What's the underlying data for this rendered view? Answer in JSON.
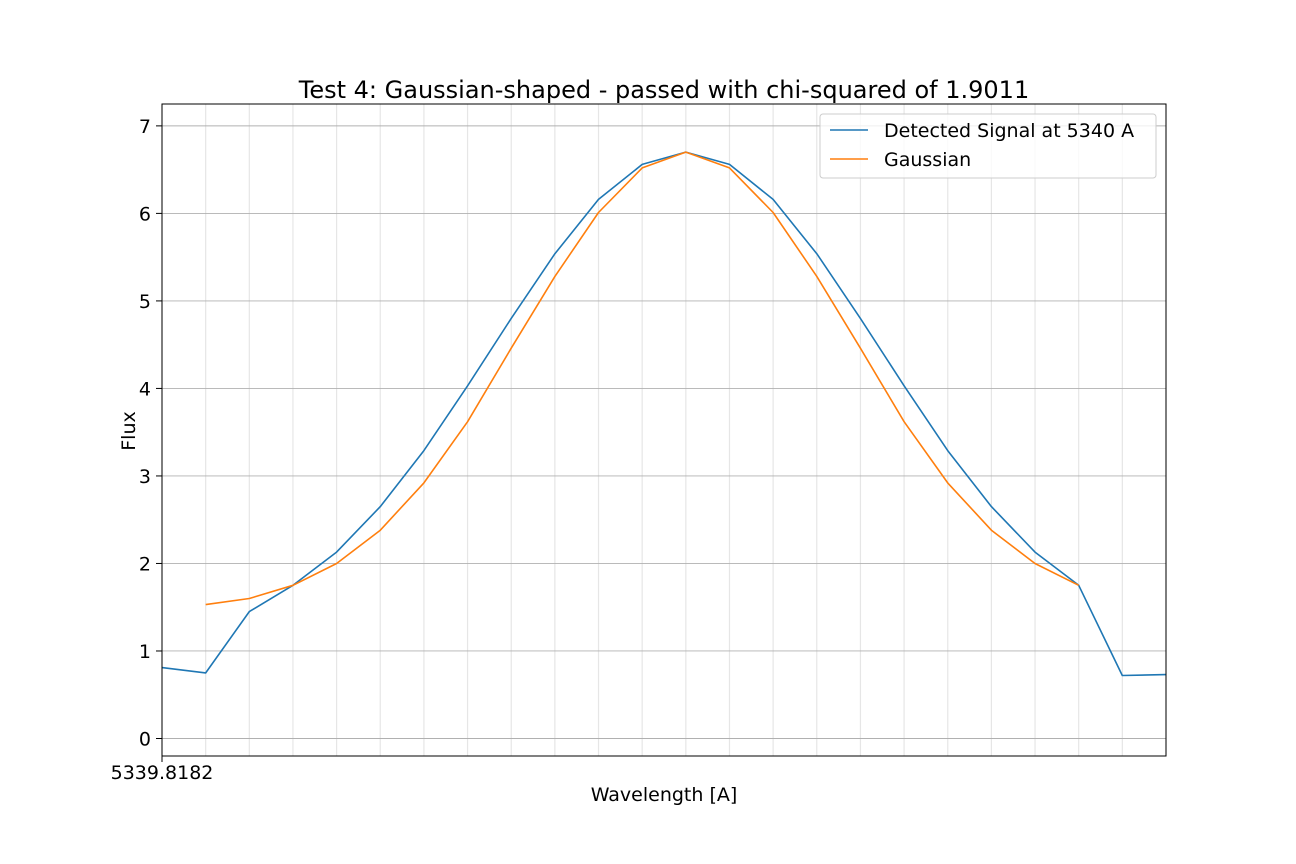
{
  "chart_data": {
    "type": "line",
    "title": "Test 4: Gaussian-shaped - passed with chi-squared of 1.9011",
    "xlabel": "Wavelength [A]",
    "ylabel": "Flux",
    "x_tick_label": "5339.8182",
    "y_ticks": [
      0,
      1,
      2,
      3,
      4,
      5,
      6,
      7
    ],
    "ylim": [
      -0.2,
      7.25
    ],
    "x_index_range": [
      0,
      23
    ],
    "grid": true,
    "legend_position": "top-right",
    "series": [
      {
        "name": "Detected Signal at 5340 A",
        "color": "#1f77b4",
        "x_index": [
          0,
          1,
          2,
          3,
          4,
          5,
          6,
          7,
          8,
          9,
          10,
          11,
          12,
          13,
          14,
          15,
          16,
          17,
          18,
          19,
          20,
          21,
          22,
          23
        ],
        "values": [
          0.81,
          0.75,
          1.45,
          1.75,
          2.13,
          2.65,
          3.29,
          4.03,
          4.8,
          5.54,
          6.16,
          6.56,
          6.7,
          6.56,
          6.16,
          5.54,
          4.8,
          4.03,
          3.29,
          2.65,
          2.13,
          1.75,
          0.72,
          0.73
        ]
      },
      {
        "name": "Gaussian",
        "color": "#ff7f0e",
        "x_index": [
          1,
          2,
          3,
          4,
          5,
          6,
          7,
          8,
          9,
          10,
          11,
          12,
          13,
          14,
          15,
          16,
          17,
          18,
          19,
          20,
          21
        ],
        "values": [
          1.53,
          1.6,
          1.75,
          2.0,
          2.38,
          2.92,
          3.62,
          4.46,
          5.28,
          6.01,
          6.52,
          6.7,
          6.52,
          6.01,
          5.28,
          4.46,
          3.62,
          2.92,
          2.38,
          2.0,
          1.75
        ]
      }
    ]
  }
}
